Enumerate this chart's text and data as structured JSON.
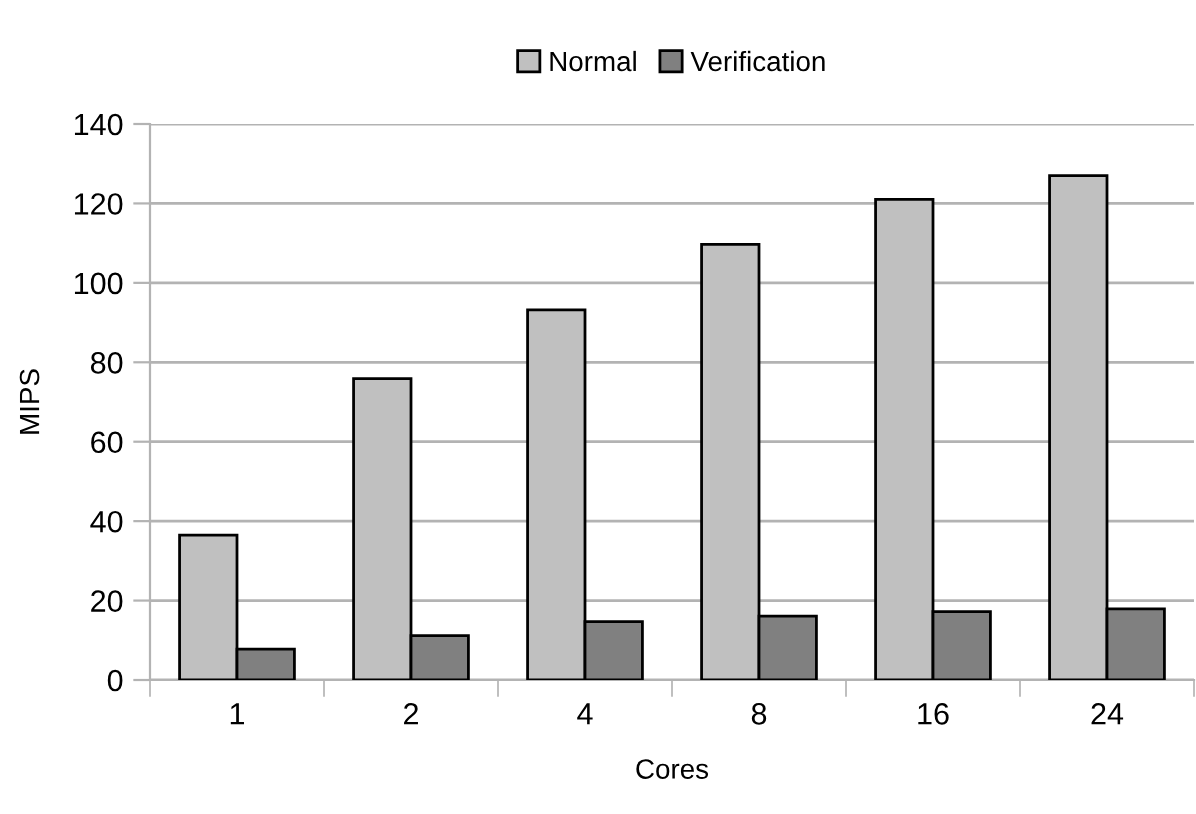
{
  "chart_data": {
    "type": "bar",
    "xlabel": "Cores",
    "ylabel": "MIPS",
    "categories": [
      "1",
      "2",
      "4",
      "8",
      "16",
      "24"
    ],
    "series": [
      {
        "name": "Normal",
        "color": "#c0c0c0",
        "values": [
          36.5,
          75.9,
          93.2,
          109.7,
          121.0,
          127.0
        ]
      },
      {
        "name": "Verification",
        "color": "#808080",
        "values": [
          7.8,
          11.2,
          14.7,
          16.1,
          17.2,
          17.9
        ]
      }
    ],
    "ylim": [
      0,
      140
    ],
    "yticks": [
      0,
      20,
      40,
      60,
      80,
      100,
      120,
      140
    ],
    "grid": "y",
    "legend": "top"
  }
}
